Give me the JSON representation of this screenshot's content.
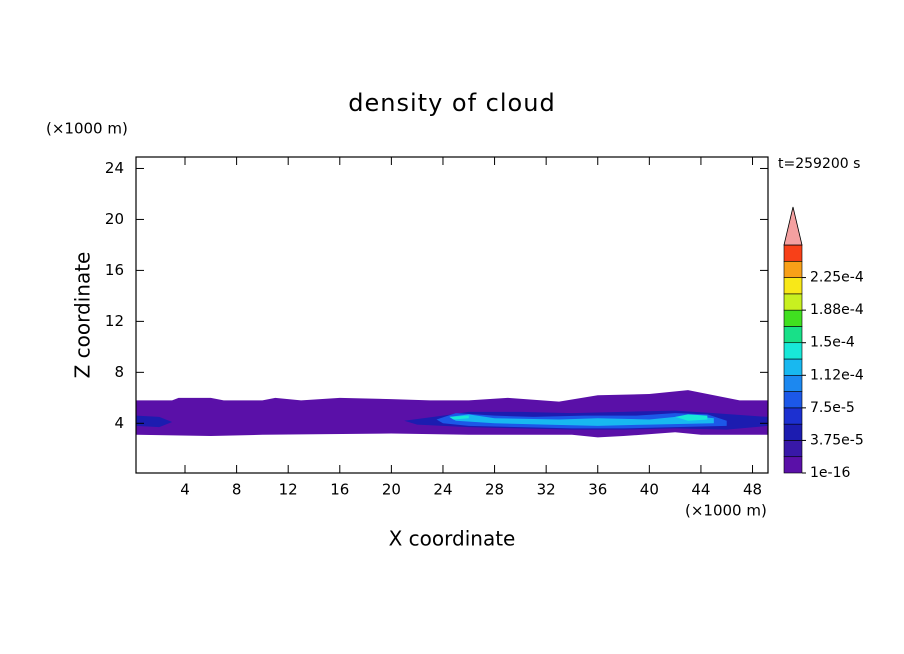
{
  "chart_data": {
    "type": "contour",
    "title": "density of cloud",
    "x_label": "X coordinate",
    "y_label": "Z coordinate",
    "x_unit": "(×1000 m)",
    "y_unit": "(×1000 m)",
    "time_label": "t=259200 s",
    "xlim": [
      0.2,
      49.2
    ],
    "ylim": [
      0.1,
      24.9
    ],
    "xticks": [
      4,
      8,
      12,
      16,
      20,
      24,
      28,
      32,
      36,
      40,
      44,
      48
    ],
    "yticks": [
      4,
      8,
      12,
      16,
      20,
      24
    ],
    "colorbar": {
      "levels": [
        {
          "value": 1e-16,
          "label": "1e-16"
        },
        {
          "value": 3.75e-05,
          "label": "3.75e-5"
        },
        {
          "value": 7.5e-05,
          "label": "7.5e-5"
        },
        {
          "value": 0.000112,
          "label": "1.12e-4"
        },
        {
          "value": 0.00015,
          "label": "1.5e-4"
        },
        {
          "value": 0.000188,
          "label": "1.88e-4"
        },
        {
          "value": 0.000225,
          "label": "2.25e-4"
        }
      ],
      "colors": [
        "#5a10a8",
        "#3818a8",
        "#1c1cb0",
        "#1c30d0",
        "#1c58e8",
        "#1c88f0",
        "#18b8f0",
        "#18e8d8",
        "#18e088",
        "#40e020",
        "#c8f020",
        "#f8e818",
        "#f8a018",
        "#f84018"
      ],
      "extend_color": "#f4a0a0"
    },
    "regions": [
      {
        "level": 0,
        "x": [
          0.2,
          3,
          3.5,
          6,
          7,
          10,
          11,
          13,
          16,
          20,
          23,
          26,
          29,
          33,
          36,
          40,
          43,
          45,
          47,
          49.2,
          49.2,
          44,
          42,
          38,
          36,
          34,
          30,
          26,
          20,
          10,
          6,
          0.2
        ],
        "z": [
          5.8,
          5.8,
          6.0,
          6.0,
          5.8,
          5.8,
          6.0,
          5.8,
          6.0,
          5.9,
          5.8,
          5.8,
          6.0,
          5.7,
          6.2,
          6.3,
          6.6,
          6.2,
          5.8,
          5.8,
          3.1,
          3.1,
          3.3,
          3.0,
          2.9,
          3.1,
          3.1,
          3.1,
          3.2,
          3.1,
          3.0,
          3.1
        ]
      },
      {
        "level": 2,
        "x": [
          0.2,
          2,
          3,
          2,
          0.2
        ],
        "z": [
          4.6,
          4.5,
          4.1,
          3.7,
          3.8
        ]
      },
      {
        "level": 2,
        "x": [
          21,
          24,
          26,
          30,
          34,
          38,
          42,
          45,
          49.2,
          49.2,
          46,
          42,
          38,
          34,
          30,
          26,
          22
        ],
        "z": [
          4.2,
          4.6,
          4.9,
          4.9,
          4.8,
          4.9,
          5.0,
          4.8,
          4.5,
          3.8,
          3.5,
          3.6,
          3.5,
          3.5,
          3.6,
          3.7,
          3.9
        ]
      },
      {
        "level": 4,
        "x": [
          23.5,
          25,
          28,
          31,
          35,
          39,
          42,
          44.5,
          46,
          46,
          42,
          38,
          34,
          30,
          26,
          24
        ],
        "z": [
          4.3,
          4.8,
          4.6,
          4.5,
          4.6,
          4.6,
          4.8,
          4.7,
          4.2,
          3.8,
          3.7,
          3.6,
          3.6,
          3.7,
          3.8,
          4.0
        ]
      },
      {
        "level": 6,
        "x": [
          24.5,
          26,
          28,
          33,
          36,
          40,
          43,
          45,
          45,
          40,
          36,
          32,
          28,
          25
        ],
        "z": [
          4.5,
          4.7,
          4.4,
          4.3,
          4.4,
          4.3,
          4.6,
          4.4,
          4.0,
          3.9,
          3.8,
          3.9,
          4.0,
          4.2
        ]
      },
      {
        "level": 7,
        "x": [
          42,
          43,
          44.5,
          44.5,
          43
        ],
        "z": [
          4.5,
          4.7,
          4.6,
          4.3,
          4.2
        ]
      },
      {
        "level": 7,
        "x": [
          24.5,
          26,
          26,
          24.8
        ],
        "z": [
          4.5,
          4.6,
          4.4,
          4.3
        ]
      }
    ]
  }
}
